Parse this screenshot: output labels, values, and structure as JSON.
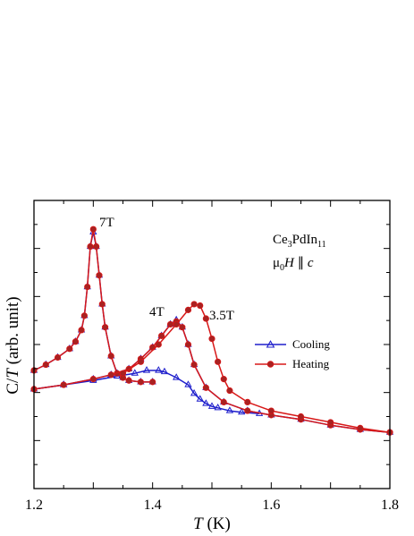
{
  "chart_data": {
    "type": "line",
    "xlabel": {
      "main": "T",
      "unit": " (K)"
    },
    "ylabel": {
      "main": "C/",
      "italic": "T",
      "unit": " (arb. unit)"
    },
    "xlim": [
      1.2,
      1.8
    ],
    "ylim": [
      0,
      1
    ],
    "xticks": [
      "1.2",
      "1.4",
      "1.6",
      "1.8"
    ],
    "yticks_labeled": false,
    "grid": false,
    "legend_position": "right",
    "compound_label": {
      "base": "Ce",
      "sub1": "3",
      "mid": "PdIn",
      "sub2": "11"
    },
    "field_label": {
      "mu": "μ",
      "mu_sub": "0",
      "h": "H",
      "parallel": " ∥ ",
      "c": "c"
    },
    "curve_labels": [
      "7T",
      "4T",
      "3.5T"
    ],
    "colors": {
      "cooling": "#1f1fcc",
      "heating": "#d81818",
      "marker_face": "#a82222"
    },
    "series": [
      {
        "name": "Cooling",
        "curve": "7T",
        "marker": "open-triangle",
        "x": [
          1.2,
          1.22,
          1.24,
          1.26,
          1.27,
          1.28,
          1.285,
          1.29,
          1.295,
          1.3,
          1.305,
          1.31,
          1.315,
          1.32,
          1.33,
          1.34,
          1.35,
          1.36,
          1.38,
          1.4
        ],
        "y": [
          0.41,
          0.43,
          0.455,
          0.485,
          0.51,
          0.55,
          0.6,
          0.7,
          0.84,
          0.89,
          0.84,
          0.74,
          0.64,
          0.56,
          0.46,
          0.4,
          0.385,
          0.375,
          0.37,
          0.37
        ]
      },
      {
        "name": "Heating",
        "curve": "7T",
        "marker": "filled-circle",
        "x": [
          1.2,
          1.22,
          1.24,
          1.26,
          1.27,
          1.28,
          1.285,
          1.29,
          1.295,
          1.3,
          1.305,
          1.31,
          1.315,
          1.32,
          1.33,
          1.34,
          1.35,
          1.36,
          1.38,
          1.4
        ],
        "y": [
          0.41,
          0.43,
          0.455,
          0.485,
          0.51,
          0.55,
          0.6,
          0.7,
          0.84,
          0.9,
          0.84,
          0.74,
          0.64,
          0.56,
          0.46,
          0.4,
          0.385,
          0.375,
          0.37,
          0.37
        ]
      },
      {
        "name": "Cooling",
        "curve": "4T",
        "marker": "open-triangle",
        "x": [
          1.2,
          1.25,
          1.3,
          1.33,
          1.36,
          1.38,
          1.4,
          1.415,
          1.43,
          1.44,
          1.45,
          1.46,
          1.47,
          1.49,
          1.52,
          1.56,
          1.6,
          1.65,
          1.7,
          1.75,
          1.8
        ],
        "y": [
          0.345,
          0.36,
          0.38,
          0.395,
          0.415,
          0.45,
          0.49,
          0.53,
          0.57,
          0.585,
          0.56,
          0.5,
          0.43,
          0.35,
          0.3,
          0.27,
          0.255,
          0.24,
          0.22,
          0.205,
          0.195
        ]
      },
      {
        "name": "Heating",
        "curve": "4T",
        "marker": "filled-circle",
        "x": [
          1.2,
          1.25,
          1.3,
          1.33,
          1.36,
          1.38,
          1.4,
          1.415,
          1.43,
          1.44,
          1.45,
          1.46,
          1.47,
          1.49,
          1.52,
          1.56,
          1.6,
          1.65,
          1.7,
          1.75,
          1.8
        ],
        "y": [
          0.345,
          0.36,
          0.38,
          0.395,
          0.415,
          0.45,
          0.49,
          0.53,
          0.57,
          0.58,
          0.56,
          0.5,
          0.43,
          0.35,
          0.3,
          0.27,
          0.255,
          0.24,
          0.22,
          0.205,
          0.195
        ]
      },
      {
        "name": "Cooling",
        "curve": "3.5T",
        "marker": "open-triangle",
        "x": [
          1.2,
          1.25,
          1.3,
          1.34,
          1.37,
          1.39,
          1.41,
          1.42,
          1.44,
          1.46,
          1.47,
          1.48,
          1.49,
          1.5,
          1.51,
          1.53,
          1.55,
          1.58
        ],
        "y": [
          0.345,
          0.36,
          0.375,
          0.39,
          0.4,
          0.41,
          0.41,
          0.405,
          0.385,
          0.36,
          0.33,
          0.31,
          0.295,
          0.285,
          0.28,
          0.27,
          0.265,
          0.26
        ]
      },
      {
        "name": "Heating",
        "curve": "3.5T",
        "marker": "filled-circle",
        "x": [
          1.35,
          1.38,
          1.41,
          1.44,
          1.46,
          1.47,
          1.48,
          1.49,
          1.5,
          1.51,
          1.52,
          1.53,
          1.56,
          1.6,
          1.65,
          1.7,
          1.75,
          1.8
        ],
        "y": [
          0.4,
          0.44,
          0.5,
          0.57,
          0.62,
          0.64,
          0.635,
          0.59,
          0.52,
          0.44,
          0.38,
          0.34,
          0.3,
          0.27,
          0.25,
          0.23,
          0.21,
          0.195
        ]
      }
    ]
  }
}
